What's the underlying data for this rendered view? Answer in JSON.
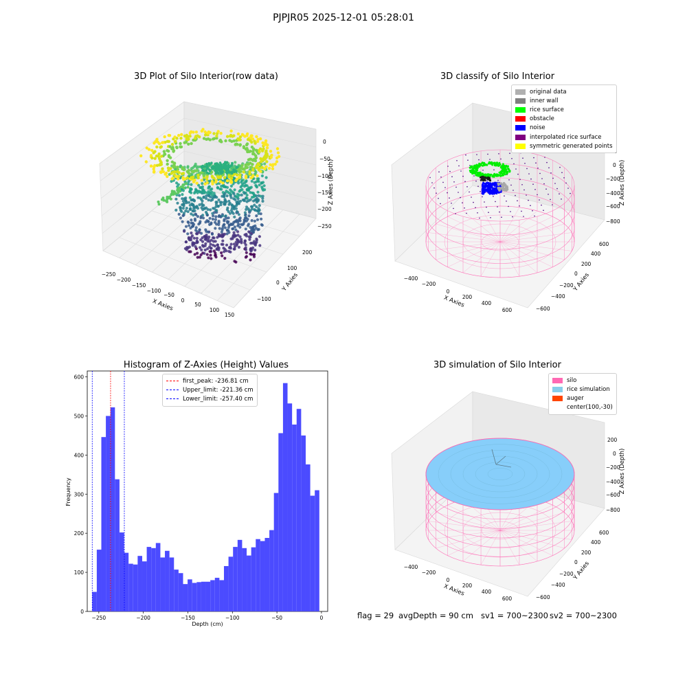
{
  "figure": {
    "suptitle": "PJPJR05 2025-12-01 05:28:01",
    "footer": {
      "flag": "flag = 29",
      "avg_depth": "avgDepth = 90 cm",
      "sv1": "sv1 = 700~2300",
      "sv2": "sv2 = 700~2300"
    }
  },
  "colors": {
    "hist_bar": "#4b4bff",
    "first_peak_line": "#ff0000",
    "limit_line": "#0000ff",
    "silo": "#ff69b4",
    "rice_simulation": "#87cefa",
    "auger": "#ff4500"
  },
  "chart_data": [
    {
      "type": "scatter",
      "projection": "3d",
      "title": "3D Plot of Silo Interior(row data)",
      "xlabel": "X Axies",
      "ylabel": "Y Axies",
      "zlabel": "Z Axies (Depth)",
      "xticks": [
        "−250",
        "−200",
        "−150",
        "−100",
        "−50",
        "0",
        "50",
        "100",
        "150"
      ],
      "yticks": [
        "−100",
        "0",
        "100",
        "200"
      ],
      "zticks": [
        "0",
        "−50",
        "−100",
        "−150",
        "−200",
        "−250"
      ],
      "xlim": [
        -260,
        150
      ],
      "ylim": [
        -150,
        250
      ],
      "zlim": [
        -270,
        0
      ],
      "colormap": "viridis"
    },
    {
      "type": "scatter",
      "projection": "3d",
      "title": "3D classify of Silo Interior",
      "xlabel": "X Axies",
      "ylabel": "Y Axies",
      "zlabel": "Z Axies (Depth)",
      "xticks": [
        "−400",
        "−200",
        "0",
        "200",
        "400",
        "600"
      ],
      "yticks": [
        "−600",
        "−400",
        "−200",
        "0",
        "200",
        "400",
        "600"
      ],
      "zticks": [
        "200",
        "0",
        "−200",
        "−400",
        "−600",
        "−800"
      ],
      "legend_position": "top-right",
      "legend": [
        {
          "label": "original data",
          "color": "#b0b0b0"
        },
        {
          "label": "inner wall",
          "color": "#808080"
        },
        {
          "label": "rice surface",
          "color": "#00ff00"
        },
        {
          "label": "obstacle",
          "color": "#ff0000"
        },
        {
          "label": "noise",
          "color": "#0000ff"
        },
        {
          "label": "interpolated rice surface",
          "color": "#800080"
        },
        {
          "label": "symmetric generated points",
          "color": "#ffff00"
        }
      ]
    },
    {
      "type": "bar",
      "title": "Histogram of Z-Axies (Height) Values",
      "xlabel": "Depth (cm)",
      "ylabel": "Frequency",
      "xlim": [
        -263,
        7
      ],
      "ylim": [
        0,
        615
      ],
      "xticks": [
        -250,
        -200,
        -150,
        -100,
        -50,
        0
      ],
      "xtick_labels": [
        "−250",
        "−200",
        "−150",
        "−100",
        "−50",
        "0"
      ],
      "yticks": [
        0,
        100,
        200,
        300,
        400,
        500,
        600
      ],
      "bin_start": -257.4,
      "bin_width": 5.1,
      "values": [
        50,
        158,
        446,
        500,
        522,
        338,
        202,
        150,
        122,
        120,
        142,
        128,
        165,
        162,
        175,
        138,
        155,
        138,
        107,
        98,
        70,
        82,
        73,
        75,
        76,
        76,
        80,
        86,
        80,
        116,
        140,
        165,
        183,
        162,
        143,
        164,
        185,
        180,
        188,
        208,
        303,
        456,
        584,
        532,
        478,
        518,
        450,
        376,
        296,
        310
      ],
      "vlines": [
        {
          "label": "first_peak: -236.81 cm",
          "x": -236.81,
          "color": "#ff0000"
        },
        {
          "label": "Upper_limit: -221.36 cm",
          "x": -221.36,
          "color": "#0000ff"
        },
        {
          "label": "Lower_limit: -257.40 cm",
          "x": -257.4,
          "color": "#0000ff"
        }
      ],
      "legend_position": "top-center"
    },
    {
      "type": "scatter",
      "projection": "3d",
      "title": "3D simulation of Silo Interior",
      "xlabel": "X Axies",
      "ylabel": "Y Axies",
      "zlabel": "Z Axies (Depth)",
      "xticks": [
        "−400",
        "−200",
        "0",
        "200",
        "400",
        "600"
      ],
      "yticks": [
        "−600",
        "−400",
        "−200",
        "0",
        "200",
        "400",
        "600"
      ],
      "zticks": [
        "200",
        "0",
        "−200",
        "−400",
        "−600",
        "−800"
      ],
      "legend_position": "top-right",
      "legend": [
        {
          "label": "silo",
          "color": "#ff69b4"
        },
        {
          "label": "rice simulation",
          "color": "#87ceeb"
        },
        {
          "label": "auger",
          "color": "#ff4500"
        },
        {
          "label": "center(100,-30)",
          "color": ""
        }
      ]
    }
  ]
}
